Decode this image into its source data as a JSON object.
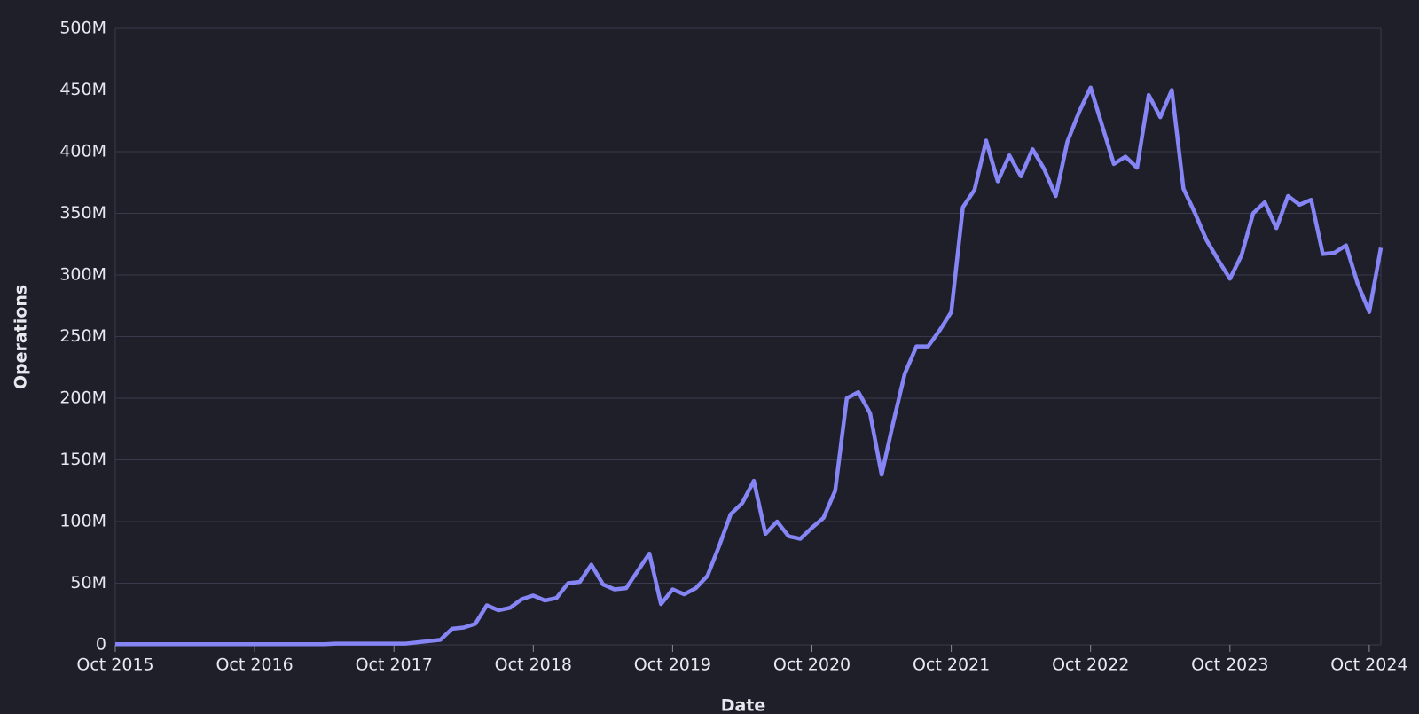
{
  "chart_data": {
    "type": "line",
    "x_label": "Date",
    "y_label": "Operations",
    "color": "#8585f5",
    "grid": true,
    "x": [
      "2015-10",
      "2015-11",
      "2015-12",
      "2016-01",
      "2016-02",
      "2016-03",
      "2016-04",
      "2016-05",
      "2016-06",
      "2016-07",
      "2016-08",
      "2016-09",
      "2016-10",
      "2016-11",
      "2016-12",
      "2017-01",
      "2017-02",
      "2017-03",
      "2017-04",
      "2017-05",
      "2017-06",
      "2017-07",
      "2017-08",
      "2017-09",
      "2017-10",
      "2017-11",
      "2017-12",
      "2018-01",
      "2018-02",
      "2018-03",
      "2018-04",
      "2018-05",
      "2018-06",
      "2018-07",
      "2018-08",
      "2018-09",
      "2018-10",
      "2018-11",
      "2018-12",
      "2019-01",
      "2019-02",
      "2019-03",
      "2019-04",
      "2019-05",
      "2019-06",
      "2019-07",
      "2019-08",
      "2019-09",
      "2019-10",
      "2019-11",
      "2019-12",
      "2020-01",
      "2020-02",
      "2020-03",
      "2020-04",
      "2020-05",
      "2020-06",
      "2020-07",
      "2020-08",
      "2020-09",
      "2020-10",
      "2020-11",
      "2020-12",
      "2021-01",
      "2021-02",
      "2021-03",
      "2021-04",
      "2021-05",
      "2021-06",
      "2021-07",
      "2021-08",
      "2021-09",
      "2021-10",
      "2021-11",
      "2021-12",
      "2022-01",
      "2022-02",
      "2022-03",
      "2022-04",
      "2022-05",
      "2022-06",
      "2022-07",
      "2022-08",
      "2022-09",
      "2022-10",
      "2022-11",
      "2022-12",
      "2023-01",
      "2023-02",
      "2023-03",
      "2023-04",
      "2023-05",
      "2023-06",
      "2023-07",
      "2023-08",
      "2023-09",
      "2023-10",
      "2023-11",
      "2023-12",
      "2024-01",
      "2024-02",
      "2024-03",
      "2024-04",
      "2024-05",
      "2024-06",
      "2024-07",
      "2024-08",
      "2024-09",
      "2024-10",
      "2024-11"
    ],
    "values": [
      0.5,
      0.5,
      0.5,
      0.5,
      0.5,
      0.5,
      0.5,
      0.5,
      0.5,
      0.5,
      0.5,
      0.5,
      0.5,
      0.5,
      0.5,
      0.5,
      0.5,
      0.5,
      0.5,
      1,
      1,
      1,
      1,
      1,
      1,
      1,
      2,
      3,
      4,
      13,
      14,
      17,
      32,
      28,
      30,
      37,
      40,
      36,
      38,
      50,
      51,
      65,
      49,
      45,
      46,
      60,
      74,
      33,
      45,
      41,
      46,
      56,
      80,
      106,
      115,
      133,
      90,
      100,
      88,
      86,
      95,
      103,
      125,
      200,
      205,
      188,
      138,
      180,
      220,
      242,
      242,
      255,
      270,
      355,
      369,
      409,
      376,
      397,
      380,
      402,
      386,
      364,
      408,
      432,
      452,
      421,
      390,
      396,
      387,
      446,
      428,
      450,
      370,
      350,
      328,
      312,
      297,
      316,
      350,
      359,
      338,
      364,
      357,
      361,
      317,
      318,
      324,
      293,
      270,
      322
    ],
    "xlim": [
      "2015-10",
      "2024-11"
    ],
    "xticks": [
      {
        "value": "2015-10",
        "label": "Oct 2015"
      },
      {
        "value": "2016-10",
        "label": "Oct 2016"
      },
      {
        "value": "2017-10",
        "label": "Oct 2017"
      },
      {
        "value": "2018-10",
        "label": "Oct 2018"
      },
      {
        "value": "2019-10",
        "label": "Oct 2019"
      },
      {
        "value": "2020-10",
        "label": "Oct 2020"
      },
      {
        "value": "2021-10",
        "label": "Oct 2021"
      },
      {
        "value": "2022-10",
        "label": "Oct 2022"
      },
      {
        "value": "2023-10",
        "label": "Oct 2023"
      },
      {
        "value": "2024-10",
        "label": "Oct 2024"
      }
    ],
    "ylim": [
      0,
      500
    ],
    "yticks": [
      0,
      {
        "value": 50,
        "label": "50M"
      },
      {
        "value": 100,
        "label": "100M"
      },
      {
        "value": 150,
        "label": "150M"
      },
      {
        "value": 200,
        "label": "200M"
      },
      {
        "value": 250,
        "label": "250M"
      },
      {
        "value": 300,
        "label": "300M"
      },
      {
        "value": 350,
        "label": "350M"
      },
      {
        "value": 400,
        "label": "400M"
      },
      {
        "value": 450,
        "label": "450M"
      },
      {
        "value": 500,
        "label": "500M"
      }
    ]
  }
}
